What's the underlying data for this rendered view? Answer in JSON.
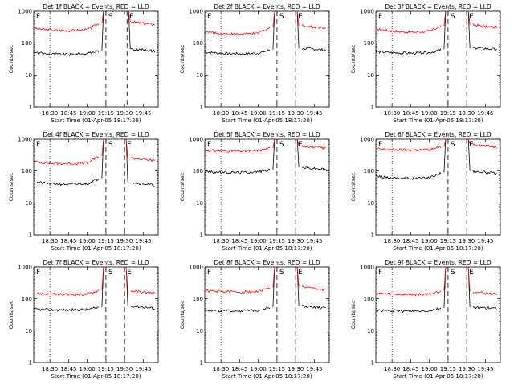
{
  "figure": {
    "x_axis_label": "Start Time (01-Apr-05 18:17:20)",
    "y_axis_label": "Counts/sec",
    "x_tick_labels": [
      "18:30",
      "18:45",
      "19:00",
      "19:15",
      "19:30",
      "19:45"
    ],
    "y_tick_labels": [
      "1",
      "10",
      "100",
      "1000"
    ],
    "series_colors": {
      "events": "#000000",
      "lld": "#ff0000"
    }
  },
  "chart_data": [
    {
      "type": "line",
      "title": "Det 1f BLACK = Events, RED = LLD",
      "x": [
        "18:17",
        "18:30",
        "18:45",
        "19:00",
        "19:10",
        "19:15",
        "19:20",
        "19:30",
        "19:35",
        "19:45",
        "19:55"
      ],
      "series": [
        {
          "values": [
            50,
            46,
            44,
            47,
            58,
            null,
            null,
            null,
            64,
            62,
            55
          ]
        },
        {
          "values": [
            290,
            260,
            245,
            265,
            420,
            null,
            null,
            null,
            470,
            420,
            380
          ]
        }
      ],
      "markers": {
        "dotted": "18:30",
        "dashed": [
          "19:15",
          "19:32"
        ],
        "labels": [
          "F",
          "S",
          "E"
        ]
      },
      "ylim": [
        1,
        1000
      ],
      "yscale": "log"
    },
    {
      "type": "line",
      "title": "Det 2f BLACK = Events, RED = LLD",
      "x": [
        "18:17",
        "18:30",
        "18:45",
        "19:00",
        "19:10",
        "19:15",
        "19:20",
        "19:30",
        "19:35",
        "19:45",
        "19:55"
      ],
      "series": [
        {
          "values": [
            52,
            48,
            46,
            48,
            62,
            null,
            null,
            null,
            68,
            65,
            60
          ]
        },
        {
          "values": [
            230,
            200,
            190,
            205,
            320,
            null,
            null,
            null,
            360,
            320,
            300
          ]
        }
      ],
      "markers": {
        "dotted": "18:30",
        "dashed": [
          "19:15",
          "19:30"
        ],
        "labels": [
          "F",
          "S",
          "E"
        ]
      },
      "ylim": [
        1,
        1000
      ],
      "yscale": "log"
    },
    {
      "type": "line",
      "title": "Det 3f BLACK = Events, RED = LLD",
      "x": [
        "18:17",
        "18:30",
        "18:45",
        "19:00",
        "19:10",
        "19:15",
        "19:20",
        "19:30",
        "19:35",
        "19:45",
        "19:55"
      ],
      "series": [
        {
          "values": [
            54,
            50,
            48,
            50,
            64,
            null,
            null,
            null,
            70,
            68,
            62
          ]
        },
        {
          "values": [
            280,
            240,
            220,
            235,
            350,
            null,
            null,
            null,
            380,
            330,
            310
          ]
        }
      ],
      "markers": {
        "dotted": "18:30",
        "dashed": [
          "19:15",
          "19:30"
        ],
        "labels": [
          "F",
          "S",
          "E"
        ]
      },
      "ylim": [
        1,
        1000
      ],
      "yscale": "log"
    },
    {
      "type": "line",
      "title": "Det 4f BLACK = Events, RED = LLD",
      "x": [
        "18:17",
        "18:30",
        "18:45",
        "19:00",
        "19:10",
        "19:15",
        "19:20",
        "19:30",
        "19:35",
        "19:45",
        "19:55"
      ],
      "series": [
        {
          "values": [
            45,
            40,
            38,
            40,
            60,
            null,
            null,
            null,
            45,
            40,
            35
          ]
        },
        {
          "values": [
            200,
            175,
            170,
            180,
            300,
            null,
            null,
            null,
            260,
            230,
            210
          ]
        }
      ],
      "markers": {
        "dotted": "18:30",
        "dashed": [
          "19:15",
          "19:30"
        ],
        "labels": [
          "F",
          "S",
          "E"
        ]
      },
      "ylim": [
        1,
        1000
      ],
      "yscale": "log"
    },
    {
      "type": "line",
      "title": "Det 5f BLACK = Events, RED = LLD",
      "x": [
        "18:17",
        "18:30",
        "18:45",
        "19:00",
        "19:10",
        "19:15",
        "19:20",
        "19:30",
        "19:35",
        "19:45",
        "19:55"
      ],
      "series": [
        {
          "values": [
            95,
            90,
            90,
            95,
            110,
            null,
            null,
            null,
            130,
            120,
            110
          ]
        },
        {
          "values": [
            450,
            430,
            420,
            440,
            520,
            null,
            null,
            null,
            620,
            560,
            520
          ]
        }
      ],
      "markers": {
        "dotted": "18:30",
        "dashed": [
          "19:15",
          "19:30"
        ],
        "labels": [
          "F",
          "S",
          "E"
        ]
      },
      "ylim": [
        1,
        1000
      ],
      "yscale": "log"
    },
    {
      "type": "line",
      "title": "Det 6f BLACK = Events, RED = LLD",
      "x": [
        "18:17",
        "18:30",
        "18:45",
        "19:00",
        "19:10",
        "19:15",
        "19:20",
        "19:30",
        "19:35",
        "19:45",
        "19:55"
      ],
      "series": [
        {
          "values": [
            68,
            62,
            58,
            62,
            90,
            null,
            null,
            null,
            100,
            90,
            82
          ]
        },
        {
          "values": [
            500,
            470,
            455,
            470,
            580,
            null,
            null,
            null,
            700,
            620,
            560
          ]
        }
      ],
      "markers": {
        "dotted": "18:30",
        "dashed": [
          "19:15",
          "19:30"
        ],
        "labels": [
          "F",
          "S",
          "E"
        ]
      },
      "ylim": [
        1,
        1000
      ],
      "yscale": "log"
    },
    {
      "type": "line",
      "title": "Det 7f BLACK = Events, RED = LLD",
      "x": [
        "18:17",
        "18:30",
        "18:45",
        "19:00",
        "19:10",
        "19:15",
        "19:20",
        "19:30",
        "19:35",
        "19:45",
        "19:55"
      ],
      "series": [
        {
          "values": [
            48,
            45,
            45,
            46,
            55,
            null,
            null,
            null,
            60,
            55,
            50
          ]
        },
        {
          "values": [
            150,
            140,
            135,
            140,
            190,
            null,
            null,
            null,
            180,
            160,
            150
          ]
        }
      ],
      "markers": {
        "dotted": "18:30",
        "dashed": [
          "19:15",
          "19:30"
        ],
        "labels": [
          "F",
          "S",
          "E"
        ]
      },
      "ylim": [
        1,
        1000
      ],
      "yscale": "log"
    },
    {
      "type": "line",
      "title": "Det 8f BLACK = Events, RED = LLD",
      "x": [
        "18:17",
        "18:30",
        "18:45",
        "19:00",
        "19:10",
        "19:15",
        "19:20",
        "19:30",
        "19:35",
        "19:45",
        "19:55"
      ],
      "series": [
        {
          "values": [
            45,
            42,
            42,
            44,
            55,
            null,
            null,
            null,
            60,
            55,
            50
          ]
        },
        {
          "values": [
            180,
            170,
            165,
            170,
            230,
            null,
            null,
            null,
            240,
            210,
            190
          ]
        }
      ],
      "markers": {
        "dotted": "18:30",
        "dashed": [
          "19:15",
          "19:30"
        ],
        "labels": [
          "F",
          "S",
          "E"
        ]
      },
      "ylim": [
        1,
        1000
      ],
      "yscale": "log"
    },
    {
      "type": "line",
      "title": "Det 9f BLACK = Events, RED = LLD",
      "x": [
        "18:17",
        "18:30",
        "18:45",
        "19:00",
        "19:10",
        "19:15",
        "19:20",
        "19:30",
        "19:35",
        "19:45",
        "19:55"
      ],
      "series": [
        {
          "values": [
            44,
            42,
            41,
            43,
            52,
            null,
            null,
            null,
            55,
            52,
            48
          ]
        },
        {
          "values": [
            150,
            140,
            135,
            140,
            180,
            null,
            null,
            null,
            170,
            150,
            140
          ]
        }
      ],
      "markers": {
        "dotted": "18:30",
        "dashed": [
          "19:15",
          "19:30"
        ],
        "labels": [
          "F",
          "S",
          "E"
        ]
      },
      "ylim": [
        1,
        1000
      ],
      "yscale": "log"
    }
  ]
}
